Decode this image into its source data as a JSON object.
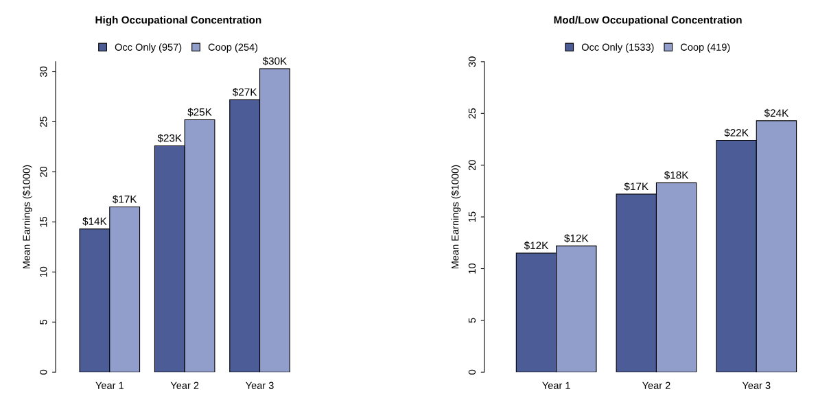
{
  "chart_data": [
    {
      "type": "bar",
      "title": "High Occupational Concentration",
      "ylabel": "Mean Earnings ($1000)",
      "categories": [
        "Year 1",
        "Year 2",
        "Year 3"
      ],
      "series": [
        {
          "name": "Occ Only (957)",
          "color": "#4c5c96",
          "values": [
            14.3,
            22.6,
            27.2
          ],
          "value_labels": [
            "$14K",
            "$23K",
            "$27K"
          ]
        },
        {
          "name": "Coop (254)",
          "color": "#919ecc",
          "values": [
            16.5,
            25.2,
            30.3
          ],
          "value_labels": [
            "$17K",
            "$25K",
            "$30K"
          ]
        }
      ],
      "ylim": [
        0,
        31
      ],
      "yticks": [
        0,
        5,
        10,
        15,
        20,
        25,
        30
      ],
      "grid": false,
      "legend": "top"
    },
    {
      "type": "bar",
      "title": "Mod/Low Occupational Concentration",
      "ylabel": "Mean Earnings ($1000)",
      "categories": [
        "Year 1",
        "Year 2",
        "Year 3"
      ],
      "series": [
        {
          "name": "Occ Only (1533)",
          "color": "#4c5c96",
          "values": [
            11.5,
            17.2,
            22.4
          ],
          "value_labels": [
            "$12K",
            "$17K",
            "$22K"
          ]
        },
        {
          "name": "Coop (419)",
          "color": "#919ecc",
          "values": [
            12.2,
            18.3,
            24.3
          ],
          "value_labels": [
            "$12K",
            "$18K",
            "$24K"
          ]
        }
      ],
      "ylim": [
        0,
        30
      ],
      "yticks": [
        0,
        5,
        10,
        15,
        20,
        25,
        30
      ],
      "grid": false,
      "legend": "top"
    }
  ]
}
